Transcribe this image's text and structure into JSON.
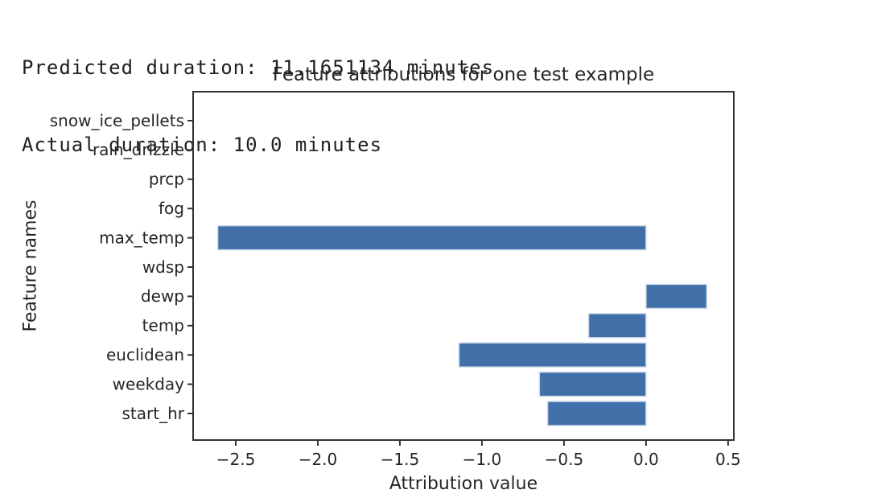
{
  "console_output": {
    "line1": "Predicted duration: 11.1651134 minutes",
    "line2": "Actual duration: 10.0 minutes"
  },
  "chart_data": {
    "type": "bar",
    "orientation": "horizontal",
    "title": "Feature attributions for one test example",
    "xlabel": "Attribution value",
    "ylabel": "Feature names",
    "categories_top_to_bottom": [
      "snow_ice_pellets",
      "rain_drizzle",
      "prcp",
      "fog",
      "max_temp",
      "wdsp",
      "dewp",
      "temp",
      "euclidean",
      "weekday",
      "start_hr"
    ],
    "values": [
      0,
      0,
      0,
      0,
      -2.61,
      0,
      0.37,
      -0.35,
      -1.14,
      -0.65,
      -0.6
    ],
    "xlim": [
      -2.76,
      0.535
    ],
    "xticks": [
      -2.5,
      -2.0,
      -1.5,
      -1.0,
      -0.5,
      0.0,
      0.5
    ],
    "xtick_labels": [
      "−2.5",
      "−2.0",
      "−1.5",
      "−1.0",
      "−0.5",
      "0.0",
      "0.5"
    ],
    "grid": false,
    "legend": null,
    "bar_color": "#4170a9",
    "bar_edge_color": "#cfdbee",
    "axis_color": "#333333",
    "text_color": "#262626"
  }
}
